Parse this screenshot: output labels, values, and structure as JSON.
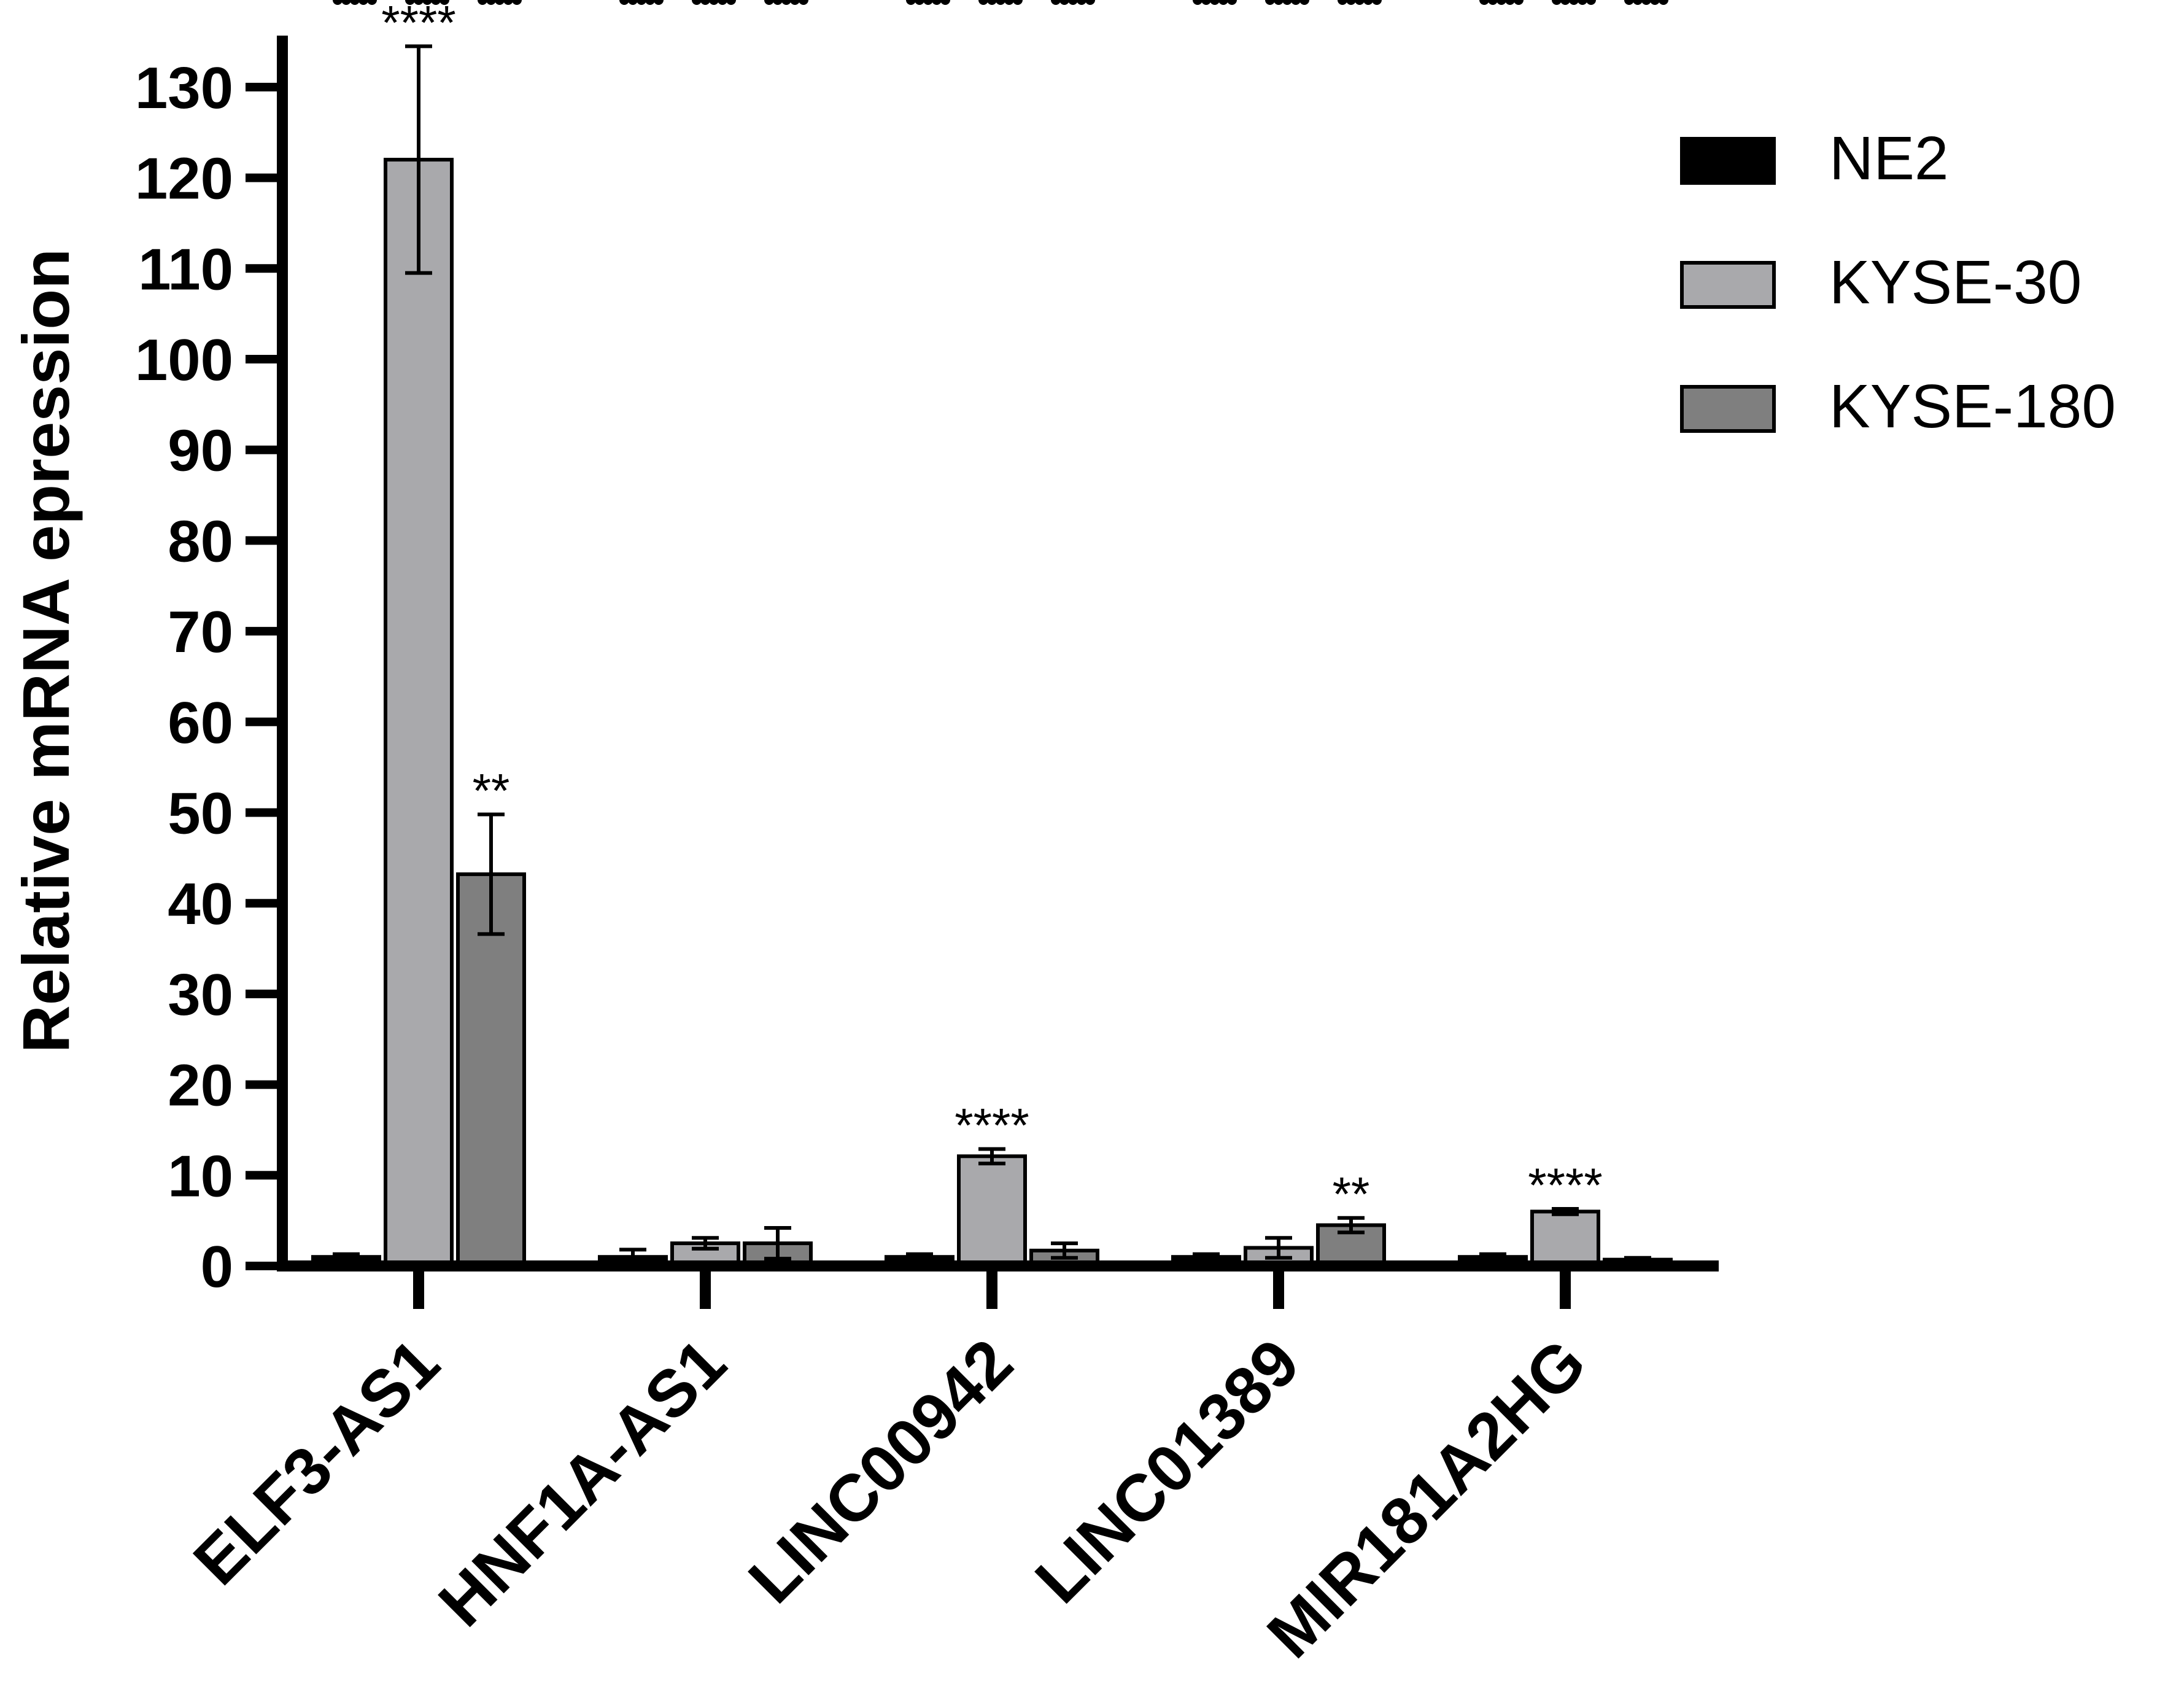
{
  "chart_data": {
    "type": "bar",
    "title": "",
    "xlabel": "",
    "ylabel": "Relative mRNA epression",
    "ylim": [
      0,
      135
    ],
    "yticks": [
      0,
      10,
      20,
      30,
      40,
      50,
      60,
      70,
      80,
      90,
      100,
      110,
      120,
      130
    ],
    "categories": [
      "ELF3-AS1",
      "HNF1A-AS1",
      "LINC00942",
      "LINC01389",
      "MIR181A2HG"
    ],
    "series": [
      {
        "name": "NE2",
        "color": "#000000",
        "values": [
          1.0,
          1.0,
          1.0,
          1.0,
          1.0
        ],
        "errors": [
          0.3,
          0.8,
          0.3,
          0.3,
          0.3
        ],
        "points": [
          [
            0.8,
            1.0,
            1.1
          ],
          [
            0.5,
            0.8,
            1.7
          ],
          [
            0.8,
            1.0,
            1.2
          ],
          [
            0.8,
            1.0,
            1.1
          ],
          [
            0.8,
            1.0,
            1.2
          ]
        ],
        "significance": [
          "",
          "",
          "",
          "",
          ""
        ]
      },
      {
        "name": "KYSE-30",
        "color": "#a9a9ac",
        "values": [
          122,
          2.5,
          12.1,
          2.0,
          6.0
        ],
        "errors": [
          12.5,
          0.6,
          0.8,
          1.1,
          0.3
        ],
        "points": [
          [
            111,
            119.8,
            134
          ],
          [
            2.1,
            2.5,
            3.0
          ],
          [
            11.5,
            12.0,
            12.9
          ],
          [
            1.0,
            2.0,
            3.0
          ],
          [
            5.8,
            6.0,
            6.2
          ]
        ],
        "significance": [
          "****",
          "",
          "****",
          "",
          "****"
        ]
      },
      {
        "name": "KYSE-180",
        "color": "#7f7f7f",
        "values": [
          43.2,
          2.5,
          1.7,
          4.5,
          0.7
        ],
        "errors": [
          6.6,
          1.7,
          0.8,
          0.8,
          0.2
        ],
        "points": [
          [
            39,
            40,
            50.5
          ],
          [
            1.0,
            2.5,
            4.0
          ],
          [
            1.0,
            1.5,
            2.5
          ],
          [
            3.8,
            4.5,
            5.2
          ],
          [
            0.5,
            0.7,
            0.9
          ]
        ],
        "significance": [
          "**",
          "",
          "",
          "**",
          ""
        ]
      }
    ],
    "legend": {
      "position": "top-right",
      "entries": [
        "NE2",
        "KYSE-30",
        "KYSE-180"
      ]
    },
    "grid": false
  }
}
